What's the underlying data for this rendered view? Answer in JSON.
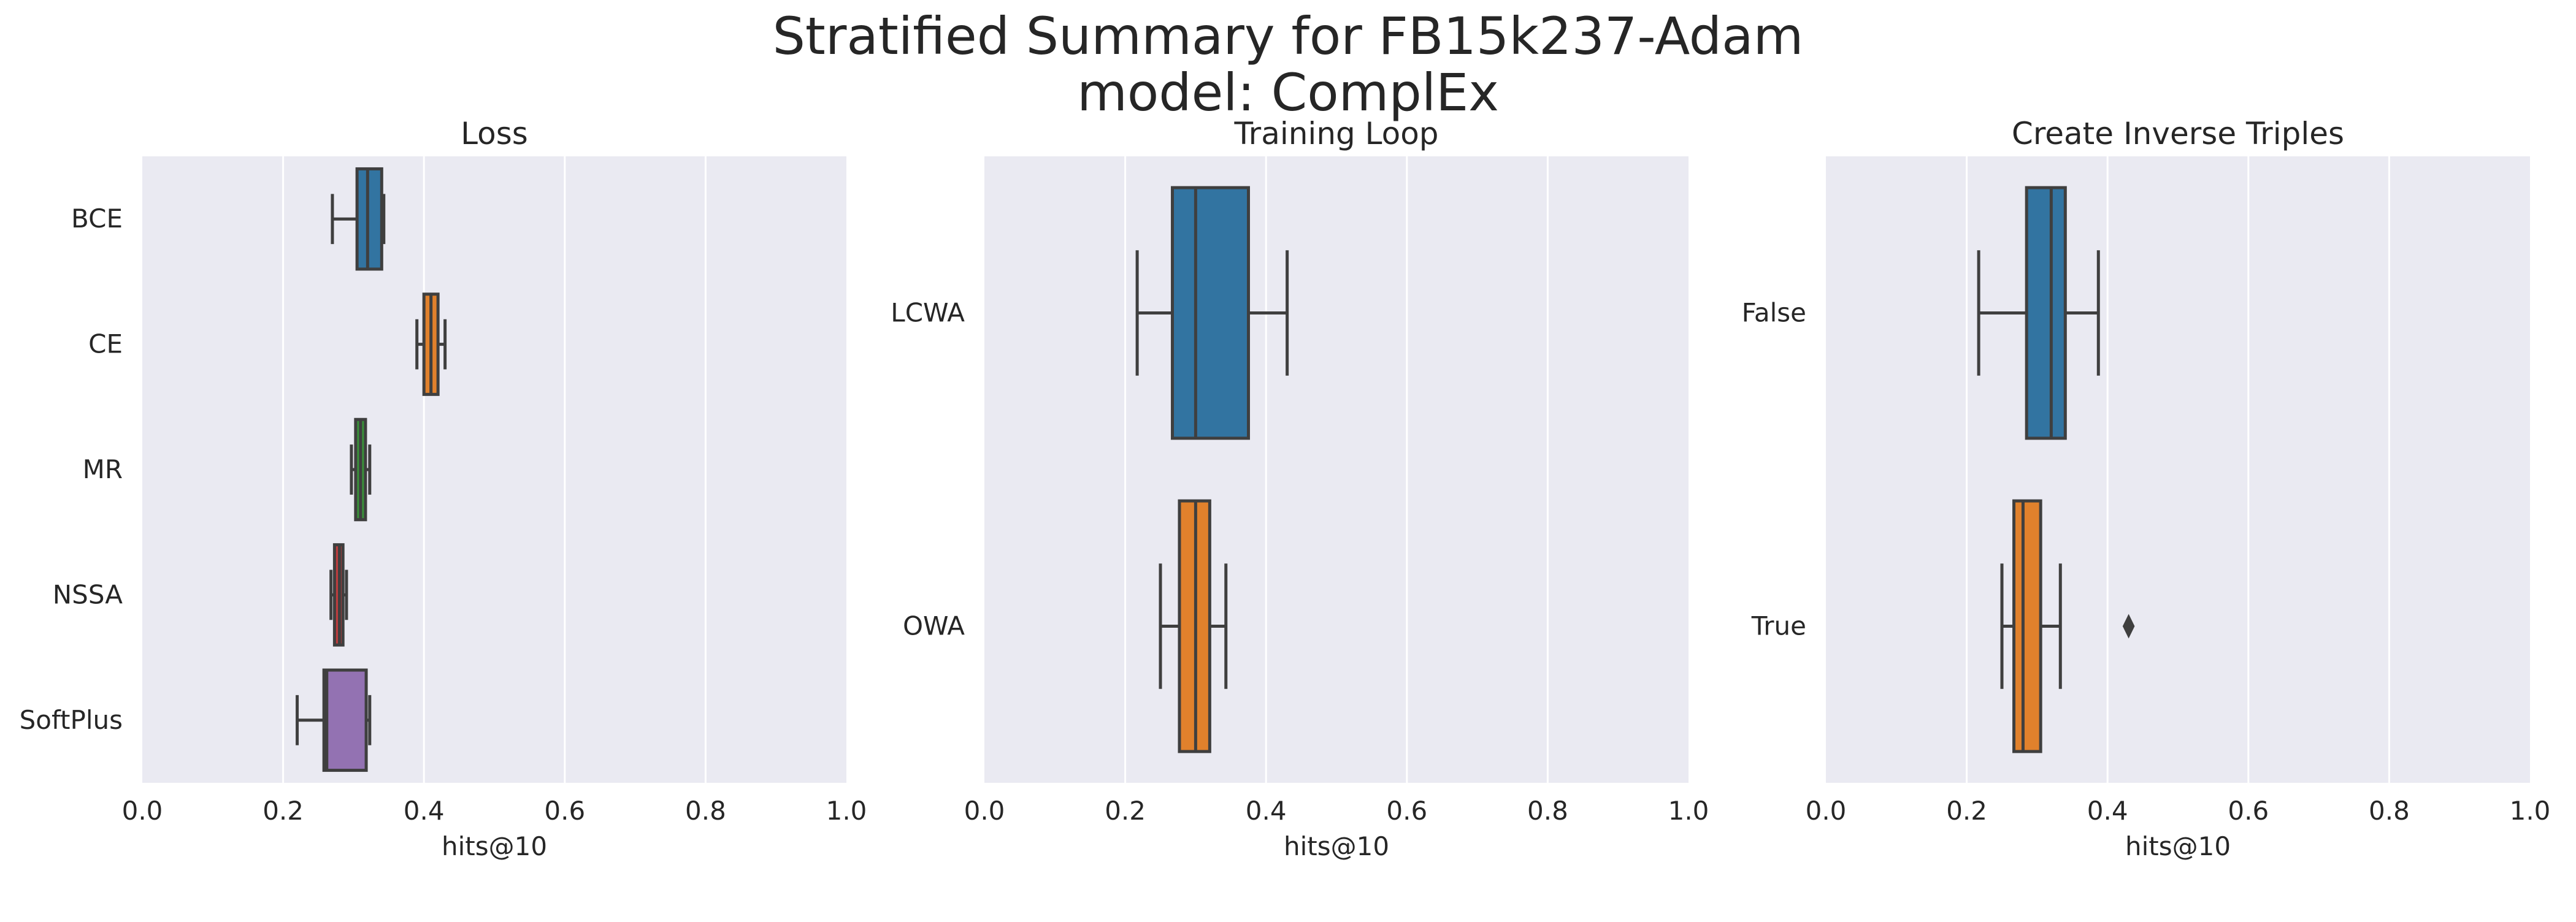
{
  "figure": {
    "title_lines": [
      "Stratified Summary for FB15k237-Adam",
      "model: ComplEx"
    ]
  },
  "chart_data": [
    {
      "type": "boxplot",
      "orientation": "horizontal",
      "title": "Loss",
      "xlabel": "hits@10",
      "xlim": [
        0,
        1
      ],
      "xticks": [
        "0.0",
        "0.2",
        "0.4",
        "0.6",
        "0.8",
        "1.0"
      ],
      "grid": true,
      "categories": [
        "BCE",
        "CE",
        "MR",
        "NSSA",
        "SoftPlus"
      ],
      "colors": [
        "#3274a1",
        "#e1812c",
        "#3a923a",
        "#c03d3e",
        "#9372b2"
      ],
      "boxes": [
        {
          "whislo": 0.27,
          "q1": 0.305,
          "med": 0.32,
          "q3": 0.34,
          "whishi": 0.343,
          "fliers": []
        },
        {
          "whislo": 0.39,
          "q1": 0.4,
          "med": 0.41,
          "q3": 0.42,
          "whishi": 0.43,
          "fliers": []
        },
        {
          "whislo": 0.297,
          "q1": 0.303,
          "med": 0.31,
          "q3": 0.317,
          "whishi": 0.323,
          "fliers": []
        },
        {
          "whislo": 0.268,
          "q1": 0.273,
          "med": 0.28,
          "q3": 0.285,
          "whishi": 0.29,
          "fliers": []
        },
        {
          "whislo": 0.22,
          "q1": 0.258,
          "med": 0.262,
          "q3": 0.318,
          "whishi": 0.323,
          "fliers": []
        }
      ]
    },
    {
      "type": "boxplot",
      "orientation": "horizontal",
      "title": "Training Loop",
      "xlabel": "hits@10",
      "xlim": [
        0,
        1
      ],
      "xticks": [
        "0.0",
        "0.2",
        "0.4",
        "0.6",
        "0.8",
        "1.0"
      ],
      "grid": true,
      "categories": [
        "LCWA",
        "OWA"
      ],
      "colors": [
        "#3274a1",
        "#e1812c"
      ],
      "boxes": [
        {
          "whislo": 0.217,
          "q1": 0.267,
          "med": 0.3,
          "q3": 0.375,
          "whishi": 0.43,
          "fliers": []
        },
        {
          "whislo": 0.25,
          "q1": 0.277,
          "med": 0.3,
          "q3": 0.32,
          "whishi": 0.343,
          "fliers": []
        }
      ]
    },
    {
      "type": "boxplot",
      "orientation": "horizontal",
      "title": "Create Inverse Triples",
      "xlabel": "hits@10",
      "xlim": [
        0,
        1
      ],
      "xticks": [
        "0.0",
        "0.2",
        "0.4",
        "0.6",
        "0.8",
        "1.0"
      ],
      "grid": true,
      "categories": [
        "False",
        "True"
      ],
      "colors": [
        "#3274a1",
        "#e1812c"
      ],
      "boxes": [
        {
          "whislo": 0.217,
          "q1": 0.285,
          "med": 0.32,
          "q3": 0.34,
          "whishi": 0.387,
          "fliers": []
        },
        {
          "whislo": 0.25,
          "q1": 0.267,
          "med": 0.28,
          "q3": 0.305,
          "whishi": 0.333,
          "fliers": [
            0.43
          ]
        }
      ]
    }
  ]
}
